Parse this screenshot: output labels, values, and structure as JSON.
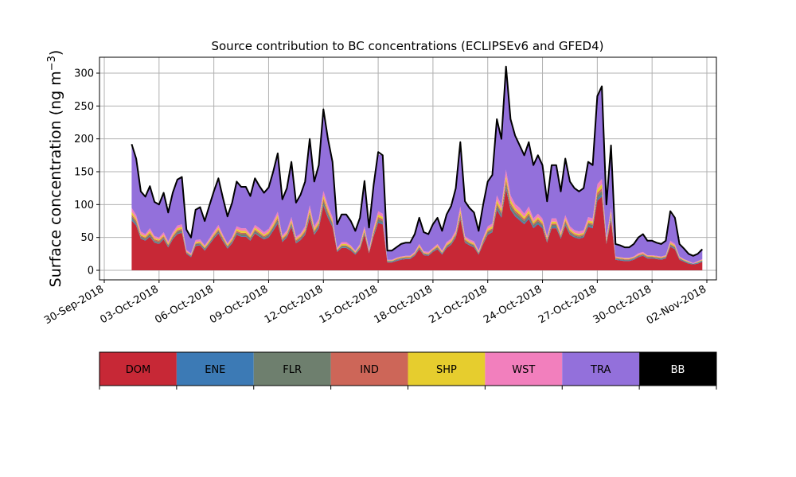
{
  "chart_data": {
    "type": "area",
    "title": "Source contribution to BC concentrations (ECLIPSEv6 and GFED4)",
    "ylabel_main": "Surface concentration (ng m",
    "ylabel_sup": "−3",
    "ylabel_close": ")",
    "xlabel": "",
    "ylim": [
      -15,
      325
    ],
    "yticks": [
      0,
      50,
      100,
      150,
      200,
      250,
      300
    ],
    "xlim": [
      "2018-09-30",
      "2018-11-02"
    ],
    "xticks": [
      "30-Sep-2018",
      "03-Oct-2018",
      "06-Oct-2018",
      "09-Oct-2018",
      "12-Oct-2018",
      "15-Oct-2018",
      "18-Oct-2018",
      "21-Oct-2018",
      "24-Oct-2018",
      "27-Oct-2018",
      "30-Oct-2018",
      "02-Nov-2018"
    ],
    "grid": true,
    "x": [
      1.5,
      1.75,
      2.0,
      2.25,
      2.5,
      2.75,
      3.0,
      3.25,
      3.5,
      3.75,
      4.0,
      4.25,
      4.5,
      4.75,
      5.0,
      5.25,
      5.5,
      5.75,
      6.0,
      6.25,
      6.5,
      6.75,
      7.0,
      7.25,
      7.5,
      7.75,
      8.0,
      8.25,
      8.5,
      8.75,
      9.0,
      9.25,
      9.5,
      9.75,
      10.0,
      10.25,
      10.5,
      10.75,
      11.0,
      11.25,
      11.5,
      11.75,
      12.0,
      12.25,
      12.5,
      12.75,
      13.0,
      13.25,
      13.5,
      13.75,
      14.0,
      14.25,
      14.5,
      14.75,
      15.0,
      15.25,
      15.5,
      15.75,
      16.0,
      16.25,
      16.5,
      16.75,
      17.0,
      17.25,
      17.5,
      17.75,
      18.0,
      18.25,
      18.5,
      18.75,
      19.0,
      19.25,
      19.5,
      19.75,
      20.0,
      20.25,
      20.5,
      20.75,
      21.0,
      21.25,
      21.5,
      21.75,
      22.0,
      22.25,
      22.5,
      22.75,
      23.0,
      23.25,
      23.5,
      23.75,
      24.0,
      24.25,
      24.5,
      24.75,
      25.0,
      25.25,
      25.5,
      25.75,
      26.0,
      26.25,
      26.5,
      26.75,
      27.0,
      27.25,
      27.5,
      27.75,
      28.0,
      28.25,
      28.5,
      28.75,
      29.0,
      29.25,
      29.5,
      29.75,
      30.0,
      30.25,
      30.5,
      30.75,
      31.0,
      31.25,
      31.5,
      31.75,
      32.0,
      32.25,
      32.5,
      32.75
    ],
    "total": [
      192,
      170,
      120,
      112,
      128,
      104,
      100,
      118,
      88,
      118,
      138,
      142,
      62,
      50,
      92,
      96,
      75,
      98,
      120,
      140,
      110,
      82,
      103,
      135,
      127,
      127,
      113,
      140,
      128,
      118,
      126,
      150,
      178,
      108,
      125,
      165,
      103,
      115,
      135,
      200,
      135,
      160,
      245,
      200,
      165,
      70,
      85,
      85,
      75,
      60,
      80,
      136,
      65,
      130,
      180,
      175,
      30,
      30,
      35,
      40,
      42,
      42,
      55,
      80,
      58,
      55,
      70,
      80,
      60,
      85,
      98,
      125,
      195,
      105,
      95,
      88,
      60,
      100,
      135,
      145,
      230,
      200,
      310,
      230,
      205,
      190,
      175,
      195,
      160,
      175,
      160,
      105,
      160,
      160,
      120,
      170,
      135,
      125,
      120,
      125,
      165,
      160,
      265,
      280,
      100,
      190,
      40,
      38,
      35,
      35,
      40,
      50,
      55,
      45,
      45,
      42,
      40,
      45,
      90,
      80,
      40,
      33,
      25,
      22,
      25,
      32
    ],
    "series": [
      {
        "name": "DOM",
        "color": "#c72836",
        "values": [
          76,
          68,
          48,
          45,
          51,
          42,
          40,
          47,
          35,
          47,
          55,
          57,
          25,
          20,
          37,
          38,
          30,
          39,
          48,
          56,
          44,
          33,
          41,
          54,
          51,
          51,
          45,
          56,
          51,
          47,
          50,
          60,
          71,
          43,
          50,
          66,
          41,
          46,
          54,
          80,
          54,
          64,
          98,
          80,
          66,
          28,
          34,
          34,
          30,
          24,
          32,
          54,
          26,
          52,
          72,
          70,
          12,
          12,
          14,
          16,
          17,
          17,
          22,
          32,
          23,
          22,
          28,
          32,
          24,
          34,
          39,
          50,
          78,
          42,
          38,
          35,
          24,
          40,
          54,
          58,
          92,
          80,
          124,
          92,
          82,
          76,
          70,
          78,
          64,
          70,
          64,
          42,
          64,
          64,
          48,
          68,
          54,
          50,
          48,
          50,
          66,
          64,
          106,
          112,
          40,
          76,
          16,
          15,
          14,
          14,
          16,
          20,
          22,
          18,
          18,
          17,
          16,
          18,
          36,
          32,
          16,
          13,
          10,
          9,
          10,
          13
        ]
      },
      {
        "name": "ENE",
        "color": "#3c7ab5",
        "values": [
          2,
          2,
          1,
          1,
          1,
          1,
          1,
          1,
          1,
          1,
          1,
          1,
          1,
          1,
          1,
          1,
          1,
          1,
          1,
          1,
          1,
          1,
          1,
          1,
          1,
          1,
          1,
          1,
          1,
          1,
          1,
          2,
          2,
          1,
          1,
          2,
          1,
          1,
          1,
          2,
          1,
          2,
          2,
          2,
          2,
          1,
          1,
          1,
          1,
          1,
          1,
          1,
          1,
          1,
          2,
          2,
          1,
          1,
          1,
          1,
          1,
          1,
          1,
          1,
          1,
          1,
          1,
          1,
          1,
          1,
          1,
          1,
          2,
          1,
          1,
          1,
          1,
          1,
          1,
          1,
          2,
          2,
          3,
          2,
          2,
          2,
          2,
          2,
          2,
          2,
          2,
          1,
          2,
          2,
          1,
          2,
          1,
          1,
          1,
          1,
          2,
          2,
          3,
          3,
          1,
          2,
          1,
          1,
          1,
          1,
          1,
          1,
          1,
          1,
          1,
          1,
          1,
          1,
          1,
          1,
          1,
          1,
          1,
          1,
          1,
          1
        ]
      },
      {
        "name": "FLR",
        "color": "#6e7f6e",
        "values": [
          4,
          3,
          2,
          2,
          3,
          2,
          2,
          2,
          2,
          2,
          3,
          3,
          1,
          1,
          2,
          2,
          2,
          2,
          2,
          3,
          2,
          2,
          2,
          3,
          3,
          3,
          2,
          3,
          3,
          2,
          3,
          3,
          4,
          2,
          2,
          3,
          2,
          2,
          3,
          4,
          3,
          3,
          5,
          4,
          3,
          1,
          2,
          2,
          2,
          1,
          2,
          3,
          1,
          3,
          4,
          3,
          1,
          1,
          1,
          1,
          1,
          1,
          1,
          2,
          1,
          1,
          1,
          2,
          1,
          2,
          2,
          2,
          4,
          2,
          2,
          2,
          1,
          2,
          3,
          3,
          5,
          4,
          6,
          5,
          4,
          4,
          3,
          4,
          3,
          3,
          3,
          2,
          3,
          3,
          2,
          3,
          3,
          2,
          2,
          2,
          3,
          3,
          5,
          6,
          2,
          4,
          1,
          1,
          1,
          1,
          1,
          1,
          1,
          1,
          1,
          1,
          1,
          1,
          2,
          2,
          1,
          1,
          1,
          0,
          1,
          1
        ]
      },
      {
        "name": "IND",
        "color": "#cd6658",
        "values": [
          3,
          3,
          2,
          2,
          2,
          2,
          2,
          2,
          1,
          2,
          2,
          2,
          1,
          1,
          1,
          1,
          1,
          1,
          2,
          2,
          2,
          1,
          2,
          2,
          2,
          2,
          2,
          2,
          2,
          2,
          2,
          2,
          3,
          2,
          2,
          2,
          2,
          2,
          2,
          3,
          2,
          2,
          4,
          3,
          2,
          1,
          1,
          1,
          1,
          1,
          1,
          2,
          1,
          2,
          3,
          3,
          0,
          0,
          1,
          1,
          1,
          1,
          1,
          1,
          1,
          1,
          1,
          1,
          1,
          1,
          1,
          2,
          3,
          2,
          1,
          1,
          1,
          2,
          2,
          2,
          3,
          3,
          5,
          3,
          3,
          3,
          3,
          3,
          2,
          3,
          2,
          2,
          2,
          2,
          2,
          3,
          2,
          2,
          2,
          2,
          2,
          2,
          4,
          4,
          2,
          3,
          1,
          1,
          1,
          1,
          1,
          1,
          1,
          1,
          1,
          1,
          1,
          1,
          1,
          1,
          1,
          0,
          0,
          0,
          0,
          0
        ]
      },
      {
        "name": "SHP",
        "color": "#e6cd2e",
        "values": [
          4,
          3,
          2,
          2,
          3,
          2,
          2,
          2,
          2,
          2,
          3,
          3,
          1,
          1,
          2,
          2,
          2,
          2,
          2,
          3,
          2,
          2,
          2,
          3,
          3,
          3,
          2,
          3,
          3,
          2,
          3,
          3,
          4,
          2,
          2,
          3,
          2,
          2,
          3,
          4,
          3,
          3,
          5,
          4,
          3,
          1,
          2,
          2,
          2,
          1,
          2,
          3,
          1,
          3,
          4,
          3,
          1,
          1,
          1,
          1,
          1,
          1,
          1,
          2,
          1,
          1,
          1,
          2,
          1,
          2,
          2,
          2,
          4,
          2,
          2,
          2,
          1,
          2,
          3,
          3,
          5,
          4,
          6,
          5,
          4,
          4,
          3,
          4,
          3,
          3,
          3,
          2,
          3,
          3,
          2,
          3,
          3,
          2,
          2,
          2,
          3,
          3,
          5,
          6,
          2,
          4,
          1,
          1,
          1,
          1,
          1,
          1,
          1,
          1,
          1,
          1,
          1,
          1,
          2,
          2,
          1,
          1,
          1,
          0,
          1,
          1
        ]
      },
      {
        "name": "WST",
        "color": "#f27fbd",
        "values": [
          6,
          5,
          4,
          3,
          4,
          3,
          3,
          4,
          3,
          4,
          4,
          4,
          2,
          2,
          3,
          3,
          2,
          3,
          4,
          4,
          3,
          2,
          3,
          4,
          4,
          4,
          3,
          4,
          4,
          4,
          4,
          5,
          5,
          3,
          4,
          5,
          3,
          3,
          4,
          6,
          4,
          5,
          7,
          6,
          5,
          2,
          3,
          3,
          2,
          2,
          2,
          4,
          2,
          4,
          5,
          5,
          1,
          1,
          1,
          1,
          1,
          1,
          2,
          2,
          2,
          2,
          2,
          2,
          2,
          3,
          3,
          4,
          6,
          3,
          3,
          3,
          2,
          3,
          4,
          4,
          7,
          6,
          9,
          7,
          6,
          6,
          5,
          6,
          5,
          5,
          5,
          3,
          5,
          5,
          4,
          5,
          4,
          4,
          4,
          4,
          5,
          5,
          8,
          8,
          3,
          6,
          1,
          1,
          1,
          1,
          1,
          2,
          2,
          1,
          1,
          1,
          1,
          1,
          3,
          2,
          1,
          1,
          1,
          1,
          1,
          1
        ]
      },
      {
        "name": "TRA",
        "color": "#9370db",
        "values": [
          97,
          86,
          61,
          57,
          64,
          52,
          50,
          60,
          44,
          60,
          70,
          72,
          31,
          24,
          46,
          49,
          37,
          50,
          61,
          71,
          56,
          41,
          52,
          68,
          63,
          63,
          58,
          71,
          64,
          60,
          63,
          75,
          89,
          55,
          64,
          84,
          52,
          59,
          68,
          101,
          68,
          81,
          124,
          101,
          84,
          36,
          41,
          41,
          36,
          29,
          39,
          69,
          33,
          65,
          86,
          89,
          13,
          13,
          16,
          19,
          20,
          20,
          27,
          40,
          29,
          27,
          36,
          40,
          30,
          42,
          50,
          64,
          98,
          53,
          48,
          44,
          30,
          50,
          68,
          74,
          116,
          101,
          157,
          116,
          104,
          96,
          89,
          98,
          81,
          89,
          81,
          53,
          81,
          81,
          61,
          86,
          68,
          64,
          61,
          64,
          84,
          81,
          134,
          138,
          50,
          95,
          19,
          18,
          16,
          16,
          19,
          24,
          26,
          22,
          22,
          20,
          19,
          22,
          42,
          39,
          19,
          16,
          11,
          11,
          11,
          15
        ]
      },
      {
        "name": "BB",
        "color": "#000000",
        "values": [
          0,
          0,
          0,
          0,
          0,
          0,
          0,
          0,
          0,
          0,
          0,
          0,
          0,
          0,
          0,
          0,
          0,
          0,
          0,
          0,
          0,
          0,
          0,
          0,
          0,
          0,
          0,
          0,
          0,
          0,
          0,
          0,
          0,
          0,
          0,
          0,
          0,
          0,
          0,
          0,
          0,
          0,
          0,
          0,
          0,
          0,
          0,
          0,
          0,
          0,
          0,
          0,
          0,
          0,
          0,
          0,
          0,
          0,
          0,
          0,
          0,
          0,
          0,
          0,
          0,
          0,
          0,
          0,
          0,
          0,
          0,
          0,
          0,
          0,
          0,
          0,
          0,
          0,
          0,
          0,
          0,
          0,
          0,
          0,
          0,
          0,
          0,
          0,
          0,
          0,
          0,
          0,
          0,
          0,
          0,
          0,
          0,
          0,
          0,
          0,
          0,
          0,
          0,
          0,
          0,
          0,
          0,
          0,
          0,
          0,
          0,
          0,
          0,
          0,
          0,
          0,
          0,
          0,
          0,
          0,
          0,
          0,
          0,
          0,
          0,
          0
        ]
      }
    ],
    "legend": [
      {
        "label": "DOM",
        "color": "#c72836",
        "text_color": "#000000"
      },
      {
        "label": "ENE",
        "color": "#3c7ab5",
        "text_color": "#000000"
      },
      {
        "label": "FLR",
        "color": "#6e7f6e",
        "text_color": "#000000"
      },
      {
        "label": "IND",
        "color": "#cd6658",
        "text_color": "#000000"
      },
      {
        "label": "SHP",
        "color": "#e6cd2e",
        "text_color": "#000000"
      },
      {
        "label": "WST",
        "color": "#f27fbd",
        "text_color": "#000000"
      },
      {
        "label": "TRA",
        "color": "#9370db",
        "text_color": "#000000"
      },
      {
        "label": "BB",
        "color": "#000000",
        "text_color": "#ffffff"
      }
    ],
    "legend_position": "bottom"
  }
}
